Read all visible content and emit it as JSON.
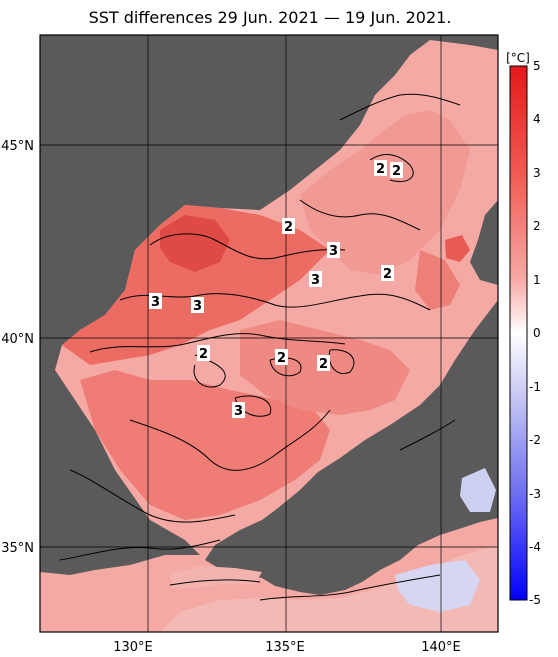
{
  "title": "SST differences 29 Jun. 2021 — 19 Jun. 2021.",
  "map": {
    "lat_labels": [
      "45°N",
      "40°N",
      "35°N"
    ],
    "lon_labels": [
      "130°E",
      "135°E",
      "140°E"
    ],
    "contour_labels": [
      "2",
      "2",
      "2",
      "3",
      "3",
      "2",
      "3",
      "3",
      "2",
      "2",
      "2",
      "3"
    ]
  },
  "colorbar": {
    "unit": "[°C]",
    "ticks": [
      "5",
      "4",
      "3",
      "2",
      "1",
      "0",
      "-1",
      "-2",
      "-3",
      "-4",
      "-5"
    ]
  },
  "colors": {
    "land": "#5a5a5a",
    "warm_strong": "#e33b3b",
    "warm_mid": "#f08a84",
    "warm_light": "#f6c3bf",
    "cool_light": "#dcdcf4",
    "cool_strong": "#0000ff"
  }
}
